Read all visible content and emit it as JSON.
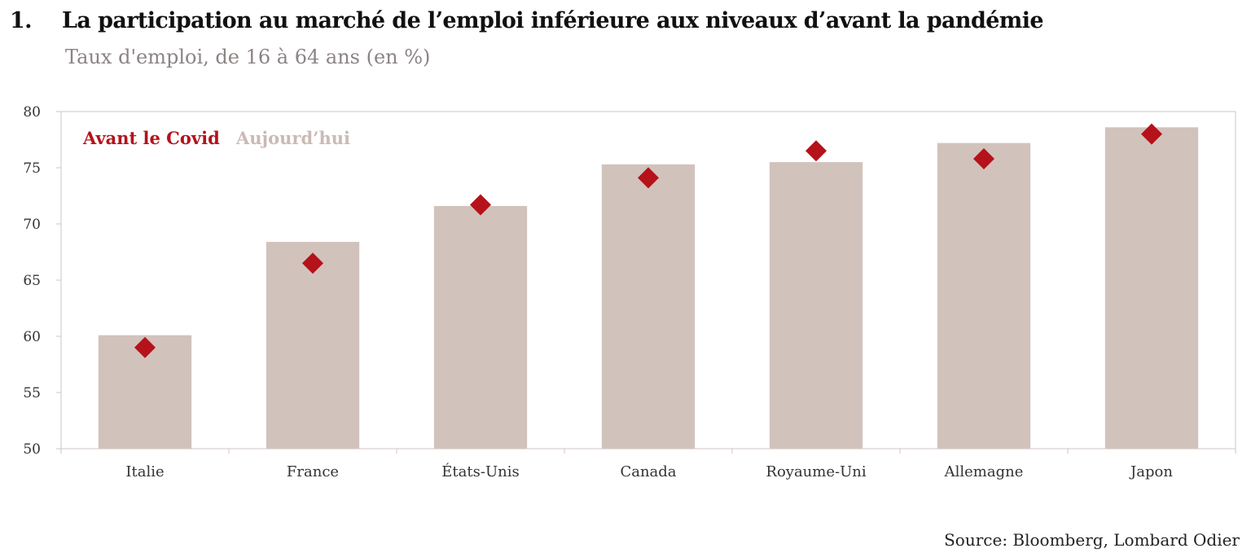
{
  "header": {
    "number": "1.",
    "title": "La participation au marché de l’emploi inférieure aux niveaux d’avant la pandémie",
    "subtitle": "Taux d'emploi, de 16 à 64 ans (en %)"
  },
  "source": "Source: Bloomberg, Lombard Odier",
  "colors": {
    "bar": "#d2c2bc",
    "marker": "#b5121b",
    "legend_today": "#cbbab3",
    "axis": "#cfc6c2"
  },
  "chart_data": {
    "type": "bar",
    "categories": [
      "Italie",
      "France",
      "États-Unis",
      "Canada",
      "Royaume-Uni",
      "Allemagne",
      "Japon"
    ],
    "series": [
      {
        "name": "Aujourd’hui",
        "type": "bar",
        "values": [
          60.1,
          68.4,
          71.6,
          75.3,
          75.5,
          77.2,
          78.6
        ]
      },
      {
        "name": "Avant le Covid",
        "type": "scatter",
        "marker": "diamond",
        "values": [
          59.0,
          66.5,
          71.7,
          74.1,
          76.5,
          75.8,
          78.0
        ]
      }
    ],
    "ylim": [
      50,
      80
    ],
    "yticks": [
      50,
      55,
      60,
      65,
      70,
      75,
      80
    ],
    "legend_placement": "top-left",
    "grid": false
  }
}
